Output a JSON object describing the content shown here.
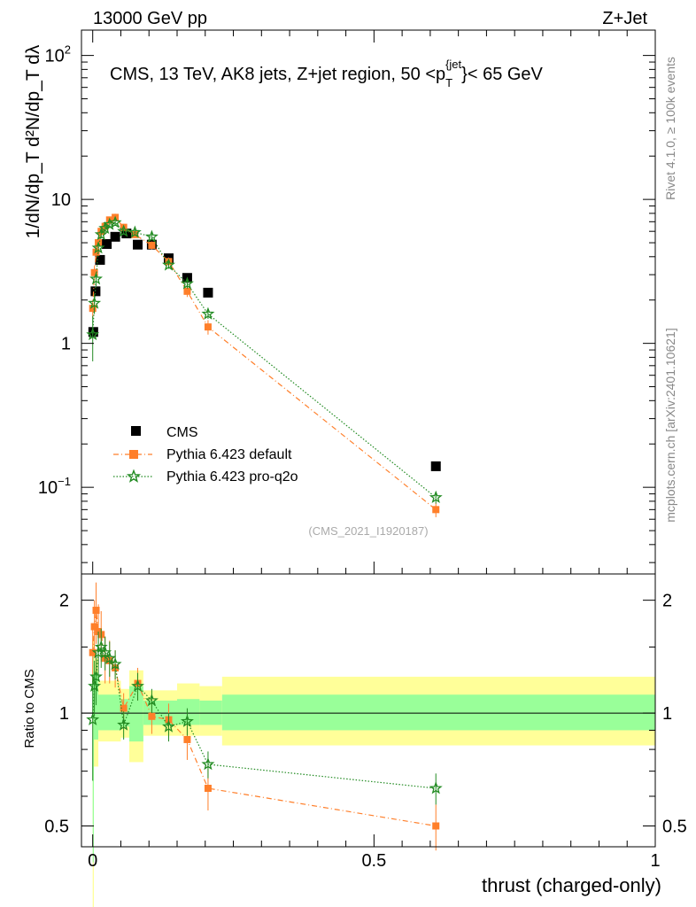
{
  "header": {
    "left": "13000 GeV pp",
    "right": "Z+Jet",
    "side_rivet": "Rivet 4.1.0, ≥ 100k events",
    "side_mcplots": "mcplots.cern.ch [arXiv:2401.10621]"
  },
  "chart_data": [
    {
      "panel": "main",
      "type": "scatter",
      "scale": "log",
      "title": "CMS, 13 TeV, AK8 jets, Z+jet region, 50 <p_T^{jet}< 65 GeV",
      "title_parts": {
        "pre": "CMS, 13 TeV, AK8 jets, Z+jet region, 50 <p",
        "sub": "T",
        "sup": "{jet",
        "post": "}< 65 GeV"
      },
      "watermark": "(CMS_2021_I1920187)",
      "ylabel": "1/dN/dp_T  d²N/dp_T dλ",
      "ylim": [
        0.025,
        150
      ],
      "xlim": [
        -0.02,
        1.0
      ],
      "yticks": [
        {
          "v": 0.1,
          "base": "10",
          "exp": "−1"
        },
        {
          "v": 1,
          "base": "1",
          "exp": ""
        },
        {
          "v": 10,
          "base": "10",
          "exp": ""
        },
        {
          "v": 100,
          "base": "10",
          "exp": "2"
        }
      ],
      "legend": [
        "CMS",
        "Pythia 6.423 default",
        "Pythia 6.423 pro-q2o"
      ],
      "series": [
        {
          "name": "CMS",
          "color": "#000000",
          "marker": "square",
          "x": [
            0.001,
            0.005,
            0.013,
            0.025,
            0.04,
            0.06,
            0.08,
            0.105,
            0.135,
            0.168,
            0.205,
            0.61
          ],
          "y": [
            1.2,
            2.3,
            3.8,
            4.9,
            5.5,
            5.8,
            4.85,
            4.85,
            3.9,
            2.85,
            2.25,
            0.14
          ]
        },
        {
          "name": "Pythia 6.423 default",
          "color": "#ff7f2a",
          "marker": "square",
          "x": [
            0.0,
            0.003,
            0.006,
            0.01,
            0.015,
            0.022,
            0.03,
            0.04,
            0.055,
            0.075,
            0.105,
            0.135,
            0.168,
            0.205,
            0.61
          ],
          "y": [
            1.75,
            3.1,
            4.3,
            5.0,
            6.0,
            6.5,
            7.2,
            7.5,
            6.4,
            5.7,
            4.8,
            3.7,
            2.3,
            1.3,
            0.07
          ],
          "err": [
            0.25,
            0.35,
            0.4,
            0.35,
            0.4,
            0.4,
            0.4,
            0.45,
            0.35,
            0.3,
            0.3,
            0.25,
            0.2,
            0.15,
            0.008
          ]
        },
        {
          "name": "Pythia 6.423 pro-q2o",
          "color": "#228b22",
          "marker": "star",
          "x": [
            0.0,
            0.003,
            0.006,
            0.01,
            0.015,
            0.022,
            0.03,
            0.04,
            0.055,
            0.075,
            0.105,
            0.135,
            0.168,
            0.205,
            0.61
          ],
          "y": [
            1.15,
            1.9,
            2.8,
            4.6,
            5.7,
            6.3,
            6.7,
            6.9,
            6.0,
            5.9,
            5.5,
            3.5,
            2.6,
            1.6,
            0.085
          ],
          "err": [
            0.4,
            0.3,
            0.3,
            0.35,
            0.35,
            0.35,
            0.35,
            0.35,
            0.3,
            0.3,
            0.3,
            0.2,
            0.2,
            0.12,
            0.008
          ]
        }
      ]
    },
    {
      "panel": "ratio",
      "type": "scatter",
      "scale": "log",
      "ylabel": "Ratio to CMS",
      "xlabel": "thrust (charged-only)",
      "ylim": [
        0.44,
        2.35
      ],
      "xlim": [
        -0.02,
        1.0
      ],
      "yticks": [
        0.5,
        1,
        2
      ],
      "xticks": [
        0,
        0.5,
        1
      ],
      "bands": [
        {
          "x0": 0.0,
          "x1": 0.002,
          "y_lo": 0.3,
          "y_hi": 1.6,
          "inner_lo": 0.4,
          "inner_hi": 1.5
        },
        {
          "x0": 0.002,
          "x1": 0.01,
          "y_lo": 0.72,
          "y_hi": 1.4,
          "inner_lo": 0.85,
          "inner_hi": 1.28
        },
        {
          "x0": 0.01,
          "x1": 0.05,
          "y_lo": 0.84,
          "y_hi": 1.22,
          "inner_lo": 0.9,
          "inner_hi": 1.12
        },
        {
          "x0": 0.05,
          "x1": 0.065,
          "y_lo": 0.86,
          "y_hi": 1.16,
          "inner_lo": 0.92,
          "inner_hi": 1.09
        },
        {
          "x0": 0.065,
          "x1": 0.09,
          "y_lo": 0.74,
          "y_hi": 1.3,
          "inner_lo": 0.84,
          "inner_hi": 1.18
        },
        {
          "x0": 0.09,
          "x1": 0.15,
          "y_lo": 0.87,
          "y_hi": 1.15,
          "inner_lo": 0.93,
          "inner_hi": 1.08
        },
        {
          "x0": 0.15,
          "x1": 0.19,
          "y_lo": 0.87,
          "y_hi": 1.2,
          "inner_lo": 0.93,
          "inner_hi": 1.09
        },
        {
          "x0": 0.19,
          "x1": 0.23,
          "y_lo": 0.87,
          "y_hi": 1.18,
          "inner_lo": 0.93,
          "inner_hi": 1.08
        },
        {
          "x0": 0.23,
          "x1": 1.0,
          "y_lo": 0.82,
          "y_hi": 1.25,
          "inner_lo": 0.9,
          "inner_hi": 1.12
        }
      ],
      "series": [
        {
          "name": "Pythia 6.423 default",
          "color": "#ff7f2a",
          "marker": "square",
          "x": [
            0.0,
            0.003,
            0.006,
            0.01,
            0.015,
            0.022,
            0.03,
            0.04,
            0.055,
            0.08,
            0.105,
            0.135,
            0.168,
            0.205,
            0.61
          ],
          "y": [
            1.45,
            1.7,
            1.88,
            1.65,
            1.62,
            1.4,
            1.38,
            1.32,
            1.03,
            1.2,
            0.98,
            0.96,
            0.85,
            0.63,
            0.5
          ],
          "err": [
            0.25,
            0.3,
            0.35,
            0.3,
            0.25,
            0.2,
            0.18,
            0.15,
            0.1,
            0.12,
            0.1,
            0.1,
            0.1,
            0.08,
            0.07
          ]
        },
        {
          "name": "Pythia 6.423 pro-q2o",
          "color": "#228b22",
          "marker": "star",
          "x": [
            0.0,
            0.003,
            0.006,
            0.01,
            0.015,
            0.022,
            0.03,
            0.04,
            0.055,
            0.08,
            0.105,
            0.135,
            0.168,
            0.205,
            0.61
          ],
          "y": [
            0.96,
            1.18,
            1.25,
            1.45,
            1.5,
            1.45,
            1.4,
            1.35,
            0.93,
            1.18,
            1.08,
            0.92,
            0.95,
            0.73,
            0.63
          ],
          "err": [
            0.3,
            0.2,
            0.2,
            0.2,
            0.18,
            0.15,
            0.15,
            0.12,
            0.08,
            0.1,
            0.08,
            0.08,
            0.08,
            0.06,
            0.06
          ]
        }
      ]
    }
  ]
}
